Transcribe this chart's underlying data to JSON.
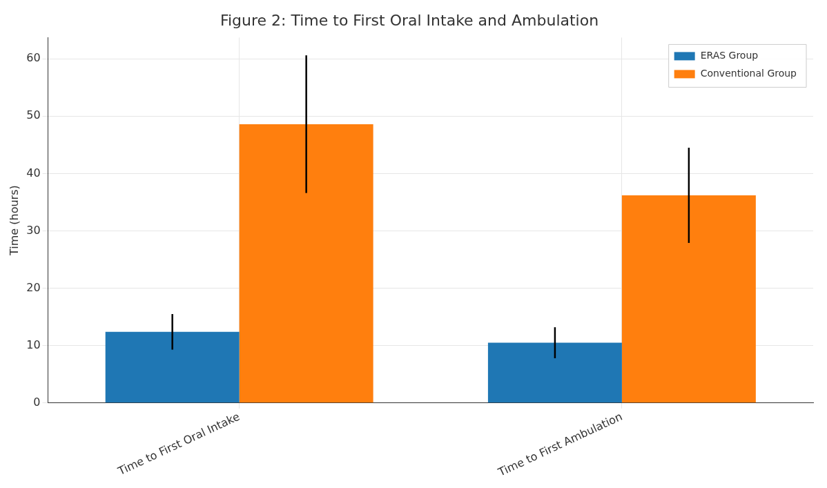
{
  "chart_data": {
    "type": "bar",
    "title": "Figure 2: Time to First Oral Intake and Ambulation",
    "ylabel": "Time (hours)",
    "categories": [
      "Time to First Oral Intake",
      "Time to First Ambulation"
    ],
    "series": [
      {
        "name": "ERAS Group",
        "color": "#1f77b4",
        "values": [
          12.4,
          10.5
        ],
        "errors": [
          3.1,
          2.7
        ]
      },
      {
        "name": "Conventional Group",
        "color": "#ff7f0e",
        "values": [
          48.6,
          36.2
        ],
        "errors": [
          12,
          8.3
        ]
      }
    ],
    "ylim": [
      0,
      63.7
    ],
    "yticks": [
      0,
      10,
      20,
      30,
      40,
      50,
      60
    ],
    "grid": true,
    "legend": "top right"
  }
}
